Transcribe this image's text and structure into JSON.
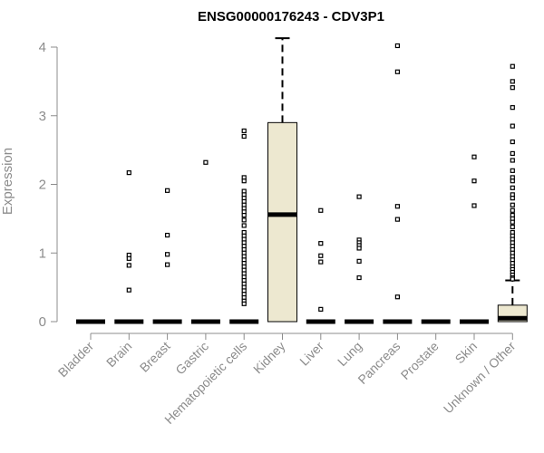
{
  "chart_data": {
    "type": "box",
    "title": "ENSG00000176243 - CDV3P1",
    "xlabel": "",
    "ylabel": "Expression",
    "ylim": [
      0,
      4.1
    ],
    "yticks": [
      0,
      1,
      2,
      3,
      4
    ],
    "grid": false,
    "box_fill": "#ede8d0",
    "categories": [
      "Bladder",
      "Brain",
      "Breast",
      "Gastric",
      "Hematopoietic cells",
      "Kidney",
      "Liver",
      "Lung",
      "Pancreas",
      "Prostate",
      "Skin",
      "Unknown / Other"
    ],
    "boxes": [
      {
        "category": "Bladder",
        "whislo": 0,
        "q1": 0,
        "med": 0,
        "q3": 0,
        "whishi": 0,
        "outliers": []
      },
      {
        "category": "Brain",
        "whislo": 0,
        "q1": 0,
        "med": 0,
        "q3": 0,
        "whishi": 0,
        "outliers": [
          2.17,
          0.97,
          0.92,
          0.82,
          0.46
        ]
      },
      {
        "category": "Breast",
        "whislo": 0,
        "q1": 0,
        "med": 0,
        "q3": 0,
        "whishi": 0,
        "outliers": [
          1.91,
          1.26,
          0.98,
          0.83
        ]
      },
      {
        "category": "Gastric",
        "whislo": 0,
        "q1": 0,
        "med": 0,
        "q3": 0,
        "whishi": 0,
        "outliers": [
          2.32
        ]
      },
      {
        "category": "Hematopoietic cells",
        "whislo": 0,
        "q1": 0,
        "med": 0,
        "q3": 0,
        "whishi": 0,
        "outliers": [
          2.78,
          2.7,
          2.1,
          2.05,
          1.9,
          1.85,
          1.8,
          1.75,
          1.7,
          1.65,
          1.6,
          1.55,
          1.48,
          1.4,
          1.3,
          1.25,
          1.2,
          1.15,
          1.1,
          1.05,
          1.0,
          0.95,
          0.9,
          0.85,
          0.8,
          0.75,
          0.7,
          0.65,
          0.6,
          0.55,
          0.5,
          0.45,
          0.4,
          0.35,
          0.3,
          0.26
        ]
      },
      {
        "category": "Kidney",
        "whislo": 0,
        "q1": 0,
        "med": 1.56,
        "q3": 2.9,
        "whishi": 4.13,
        "outliers": []
      },
      {
        "category": "Liver",
        "whislo": 0,
        "q1": 0,
        "med": 0,
        "q3": 0,
        "whishi": 0,
        "outliers": [
          1.62,
          1.14,
          0.96,
          0.87,
          0.18
        ]
      },
      {
        "category": "Lung",
        "whislo": 0,
        "q1": 0,
        "med": 0,
        "q3": 0,
        "whishi": 0,
        "outliers": [
          1.82,
          1.19,
          1.15,
          1.11,
          1.07,
          0.88,
          0.64
        ]
      },
      {
        "category": "Pancreas",
        "whislo": 0,
        "q1": 0,
        "med": 0,
        "q3": 0,
        "whishi": 0,
        "outliers": [
          4.02,
          3.64,
          1.68,
          1.49,
          0.36
        ]
      },
      {
        "category": "Prostate",
        "whislo": 0,
        "q1": 0,
        "med": 0,
        "q3": 0,
        "whishi": 0,
        "outliers": []
      },
      {
        "category": "Skin",
        "whislo": 0,
        "q1": 0,
        "med": 0,
        "q3": 0,
        "whishi": 0,
        "outliers": [
          2.4,
          2.05,
          1.69
        ]
      },
      {
        "category": "Unknown / Other",
        "whislo": 0,
        "q1": 0,
        "med": 0.05,
        "q3": 0.24,
        "whishi": 0.6,
        "outliers": [
          3.72,
          3.5,
          3.41,
          3.12,
          2.85,
          2.62,
          2.45,
          2.35,
          2.2,
          2.1,
          2.05,
          1.95,
          1.85,
          1.8,
          1.7,
          1.62,
          1.55,
          1.5,
          1.45,
          1.38,
          1.3,
          1.25,
          1.2,
          1.15,
          1.1,
          1.05,
          1.0,
          0.95,
          0.9,
          0.85,
          0.8,
          0.76,
          0.72,
          0.68,
          0.64,
          0.62
        ]
      }
    ]
  }
}
